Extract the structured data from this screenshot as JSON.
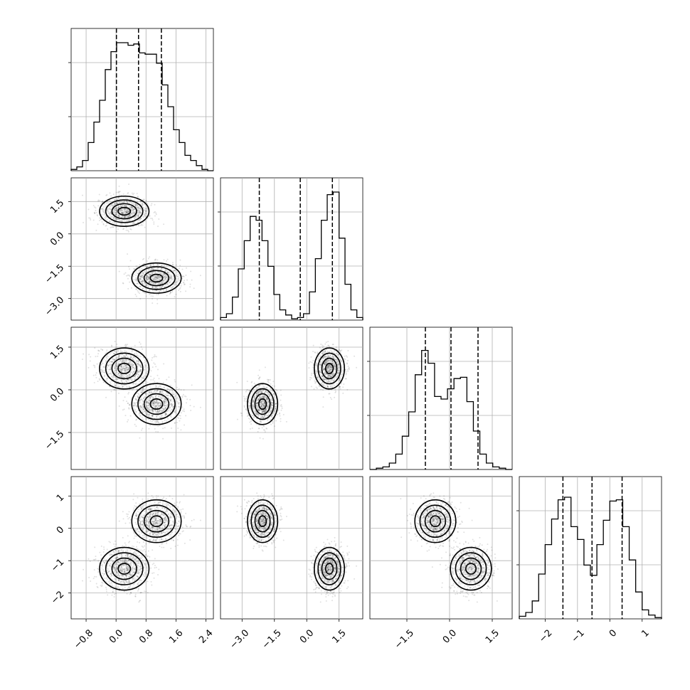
{
  "chart_data": {
    "type": "corner",
    "n_params": 4,
    "labels": [
      "",
      "",
      "",
      ""
    ],
    "ranges": [
      [
        -1.2,
        2.6
      ],
      [
        -4.0,
        2.6
      ],
      [
        -2.8,
        2.2
      ],
      [
        -2.8,
        1.6
      ]
    ],
    "ticks": [
      [
        -0.8,
        0.0,
        0.8,
        1.6,
        2.4
      ],
      [
        -3.0,
        -1.5,
        0.0,
        1.5
      ],
      [
        -1.5,
        0.0,
        1.5
      ],
      [
        -2,
        -1,
        0,
        1
      ]
    ],
    "tick_labels": [
      [
        "−0.8",
        "0.0",
        "0.8",
        "1.6",
        "2.4"
      ],
      [
        "−3.0",
        "−1.5",
        "0.0",
        "1.5"
      ],
      [
        "−1.5",
        "0.0",
        "1.5"
      ],
      [
        "−2",
        "−1",
        "0",
        "1"
      ]
    ],
    "histograms": [
      {
        "param": 0,
        "counts": [
          0.01,
          0.03,
          0.08,
          0.22,
          0.38,
          0.55,
          0.79,
          0.93,
          1.0,
          1.0,
          0.98,
          0.99,
          0.92,
          0.91,
          0.91,
          0.84,
          0.67,
          0.5,
          0.32,
          0.22,
          0.12,
          0.08,
          0.04,
          0.01,
          0.0
        ]
      },
      {
        "param": 1,
        "counts": [
          0.02,
          0.05,
          0.18,
          0.4,
          0.62,
          0.81,
          0.78,
          0.62,
          0.42,
          0.2,
          0.08,
          0.04,
          0.01,
          0.02,
          0.05,
          0.22,
          0.48,
          0.78,
          0.98,
          1.0,
          0.64,
          0.28,
          0.08,
          0.02
        ]
      },
      {
        "param": 2,
        "counts": [
          0.0,
          0.01,
          0.02,
          0.05,
          0.12,
          0.26,
          0.45,
          0.74,
          0.93,
          0.83,
          0.57,
          0.55,
          0.63,
          0.71,
          0.72,
          0.53,
          0.3,
          0.12,
          0.05,
          0.02,
          0.01,
          0.0
        ]
      },
      {
        "param": 3,
        "counts": [
          0.02,
          0.05,
          0.14,
          0.35,
          0.58,
          0.78,
          0.93,
          0.95,
          0.72,
          0.62,
          0.42,
          0.34,
          0.58,
          0.77,
          0.92,
          0.93,
          0.72,
          0.46,
          0.21,
          0.07,
          0.03,
          0.01
        ]
      }
    ],
    "quantiles": [
      {
        "param": 0,
        "values": [
          0.01,
          0.6,
          1.21
        ]
      },
      {
        "param": 1,
        "values": [
          -2.2,
          -0.3,
          1.19
        ]
      },
      {
        "param": 2,
        "values": [
          -0.85,
          0.05,
          1.0
        ]
      },
      {
        "param": 3,
        "values": [
          -1.45,
          -0.55,
          0.38
        ]
      }
    ],
    "hist_grid_fractions": [
      0.38,
      0.76
    ],
    "modes": {
      "x0": [
        0.22,
        1.08
      ],
      "x1": [
        1.05,
        -2.05
      ],
      "x2": [
        0.75,
        -0.5
      ],
      "x3": [
        -1.25,
        0.22
      ]
    },
    "mode_spread": {
      "x0": 0.33,
      "x1": 0.35,
      "x2": 0.36,
      "x3": 0.33
    },
    "samples_per_mode": 1800,
    "contour_levels": [
      0.5,
      1.0,
      1.5,
      2.0
    ],
    "colors": {
      "line": "#000000",
      "grid": "#b0b0b0",
      "background": "#ffffff"
    }
  }
}
